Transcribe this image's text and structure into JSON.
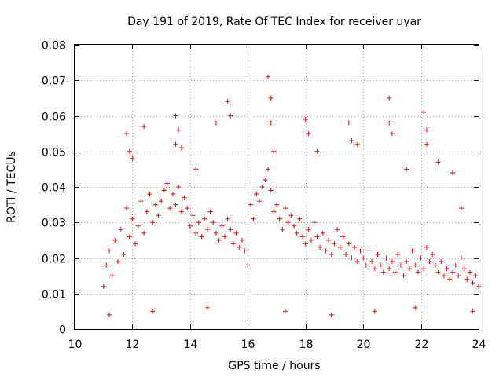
{
  "chart_data": {
    "type": "scatter",
    "title": "Day 191 of 2019, Rate Of TEC Index for receiver uyar",
    "xlabel": "GPS time / hours",
    "ylabel": "ROTI / TECUs",
    "xlim": [
      10,
      24
    ],
    "ylim": [
      0,
      0.08
    ],
    "x_ticks": [
      "10",
      "12",
      "14",
      "16",
      "18",
      "20",
      "22",
      "24"
    ],
    "y_ticks": [
      "0",
      "0.01",
      "0.02",
      "0.03",
      "0.04",
      "0.05",
      "0.06",
      "0.07",
      "0.08"
    ],
    "grid": true,
    "marker": "plus",
    "series": [
      {
        "name": "ROTI",
        "color": "#ff0000",
        "x": [
          11.0,
          11.1,
          11.2,
          11.3,
          11.4,
          11.5,
          11.6,
          11.7,
          11.8,
          11.9,
          12.0,
          12.1,
          12.2,
          12.3,
          12.4,
          12.5,
          12.6,
          12.7,
          12.8,
          12.9,
          13.0,
          13.1,
          13.2,
          13.3,
          13.4,
          13.5,
          13.6,
          13.7,
          13.8,
          13.9,
          14.0,
          14.1,
          14.2,
          14.3,
          14.4,
          14.5,
          14.6,
          14.7,
          14.8,
          14.9,
          15.0,
          15.1,
          15.2,
          15.3,
          15.4,
          15.5,
          15.6,
          15.7,
          15.8,
          15.9,
          16.0,
          16.1,
          16.2,
          16.3,
          16.4,
          16.5,
          16.6,
          16.7,
          16.8,
          16.9,
          17.0,
          17.1,
          17.2,
          17.3,
          17.4,
          17.5,
          17.6,
          17.7,
          17.8,
          17.9,
          18.0,
          18.1,
          18.2,
          18.3,
          18.4,
          18.5,
          18.6,
          18.7,
          18.8,
          18.9,
          19.0,
          19.1,
          19.2,
          19.3,
          19.4,
          19.5,
          19.6,
          19.7,
          19.8,
          19.9,
          20.0,
          20.1,
          20.2,
          20.3,
          20.4,
          20.5,
          20.6,
          20.7,
          20.8,
          20.9,
          21.0,
          21.1,
          21.2,
          21.3,
          21.4,
          21.5,
          21.6,
          21.7,
          21.8,
          21.9,
          22.0,
          22.1,
          22.2,
          22.3,
          22.4,
          22.5,
          22.6,
          22.7,
          22.8,
          22.9,
          23.0,
          23.1,
          23.2,
          23.3,
          23.4,
          23.5,
          23.6,
          23.7,
          23.8,
          23.9,
          24.0,
          11.8,
          11.9,
          12.4,
          13.5,
          13.6,
          13.5,
          14.9,
          15.3,
          15.4,
          16.7,
          16.8,
          16.8,
          18.0,
          18.1,
          19.5,
          19.6,
          20.9,
          20.9,
          21.0,
          22.1,
          22.2,
          22.2,
          23.1,
          12.0,
          13.7,
          14.2,
          16.9,
          18.4,
          19.8,
          21.5,
          22.6,
          23.4,
          11.2,
          12.7,
          14.6,
          17.3,
          18.9,
          20.4,
          21.8,
          23.8
        ],
        "y": [
          0.012,
          0.018,
          0.022,
          0.015,
          0.025,
          0.019,
          0.028,
          0.021,
          0.034,
          0.026,
          0.031,
          0.024,
          0.029,
          0.036,
          0.027,
          0.033,
          0.038,
          0.03,
          0.035,
          0.032,
          0.036,
          0.039,
          0.041,
          0.034,
          0.038,
          0.035,
          0.04,
          0.033,
          0.037,
          0.034,
          0.029,
          0.032,
          0.027,
          0.03,
          0.026,
          0.031,
          0.028,
          0.033,
          0.03,
          0.027,
          0.025,
          0.029,
          0.026,
          0.031,
          0.028,
          0.024,
          0.027,
          0.023,
          0.025,
          0.022,
          0.018,
          0.035,
          0.031,
          0.038,
          0.036,
          0.04,
          0.042,
          0.045,
          0.039,
          0.033,
          0.035,
          0.031,
          0.028,
          0.034,
          0.03,
          0.032,
          0.029,
          0.027,
          0.031,
          0.026,
          0.024,
          0.028,
          0.025,
          0.03,
          0.026,
          0.023,
          0.027,
          0.022,
          0.025,
          0.021,
          0.024,
          0.028,
          0.023,
          0.026,
          0.021,
          0.024,
          0.02,
          0.023,
          0.019,
          0.022,
          0.02,
          0.018,
          0.022,
          0.019,
          0.017,
          0.021,
          0.018,
          0.016,
          0.02,
          0.017,
          0.019,
          0.016,
          0.021,
          0.018,
          0.015,
          0.019,
          0.017,
          0.022,
          0.018,
          0.016,
          0.02,
          0.017,
          0.023,
          0.019,
          0.021,
          0.018,
          0.016,
          0.019,
          0.015,
          0.017,
          0.014,
          0.016,
          0.018,
          0.015,
          0.02,
          0.017,
          0.014,
          0.016,
          0.013,
          0.015,
          0.012,
          0.055,
          0.05,
          0.057,
          0.06,
          0.056,
          0.052,
          0.058,
          0.064,
          0.06,
          0.071,
          0.065,
          0.058,
          0.059,
          0.055,
          0.058,
          0.053,
          0.065,
          0.058,
          0.055,
          0.061,
          0.056,
          0.052,
          0.044,
          0.048,
          0.051,
          0.045,
          0.05,
          0.05,
          0.052,
          0.045,
          0.047,
          0.034,
          0.004,
          0.005,
          0.006,
          0.005,
          0.004,
          0.005,
          0.006,
          0.005
        ]
      }
    ]
  }
}
